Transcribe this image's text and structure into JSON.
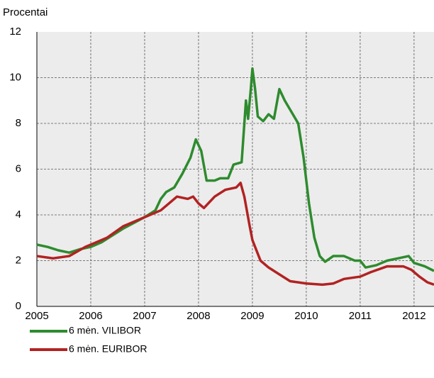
{
  "chart_data": {
    "type": "line",
    "ylabel": "Procentai",
    "xlim": [
      2005,
      2012.37
    ],
    "xticks": [
      2005,
      2006,
      2007,
      2008,
      2009,
      2010,
      2011,
      2012
    ],
    "ylim": [
      0,
      12
    ],
    "yticks": [
      0,
      2,
      4,
      6,
      8,
      10,
      12
    ],
    "grid": true,
    "legend": "bottom-left",
    "series": [
      {
        "name": "6 mėn. VILIBOR",
        "color": "#2e8b2e",
        "x": [
          2005.0,
          2005.2,
          2005.4,
          2005.6,
          2005.8,
          2006.0,
          2006.2,
          2006.4,
          2006.6,
          2006.8,
          2007.0,
          2007.2,
          2007.3,
          2007.4,
          2007.55,
          2007.7,
          2007.85,
          2007.95,
          2008.05,
          2008.15,
          2008.3,
          2008.4,
          2008.55,
          2008.65,
          2008.8,
          2008.88,
          2008.92,
          2008.97,
          2009.0,
          2009.05,
          2009.1,
          2009.2,
          2009.3,
          2009.4,
          2009.5,
          2009.6,
          2009.7,
          2009.85,
          2009.95,
          2010.05,
          2010.15,
          2010.25,
          2010.35,
          2010.5,
          2010.7,
          2010.9,
          2011.0,
          2011.1,
          2011.3,
          2011.5,
          2011.7,
          2011.9,
          2012.0,
          2012.2,
          2012.37
        ],
        "values": [
          2.7,
          2.6,
          2.45,
          2.35,
          2.5,
          2.6,
          2.8,
          3.1,
          3.4,
          3.65,
          3.9,
          4.2,
          4.7,
          5.0,
          5.2,
          5.8,
          6.5,
          7.3,
          6.8,
          5.5,
          5.5,
          5.6,
          5.6,
          6.2,
          6.3,
          9.0,
          8.2,
          9.5,
          10.4,
          9.5,
          8.3,
          8.1,
          8.4,
          8.2,
          9.5,
          9.0,
          8.6,
          8.0,
          6.5,
          4.5,
          3.0,
          2.2,
          1.95,
          2.2,
          2.2,
          2.0,
          2.0,
          1.7,
          1.8,
          2.0,
          2.1,
          2.2,
          1.9,
          1.75,
          1.55
        ]
      },
      {
        "name": "6 mėn. EURIBOR",
        "color": "#b22222",
        "x": [
          2005.0,
          2005.3,
          2005.6,
          2005.75,
          2005.9,
          2006.0,
          2006.3,
          2006.6,
          2006.9,
          2007.0,
          2007.3,
          2007.5,
          2007.6,
          2007.8,
          2007.9,
          2008.0,
          2008.1,
          2008.3,
          2008.5,
          2008.7,
          2008.78,
          2008.85,
          2008.95,
          2009.0,
          2009.15,
          2009.3,
          2009.5,
          2009.7,
          2010.0,
          2010.3,
          2010.5,
          2010.7,
          2011.0,
          2011.2,
          2011.5,
          2011.8,
          2011.95,
          2012.1,
          2012.25,
          2012.37
        ],
        "values": [
          2.2,
          2.1,
          2.2,
          2.4,
          2.6,
          2.7,
          3.0,
          3.5,
          3.8,
          3.9,
          4.2,
          4.6,
          4.8,
          4.7,
          4.8,
          4.5,
          4.3,
          4.8,
          5.1,
          5.2,
          5.4,
          4.8,
          3.5,
          2.9,
          2.0,
          1.7,
          1.4,
          1.1,
          1.0,
          0.95,
          1.0,
          1.2,
          1.3,
          1.5,
          1.75,
          1.75,
          1.6,
          1.3,
          1.05,
          0.95
        ]
      }
    ]
  }
}
